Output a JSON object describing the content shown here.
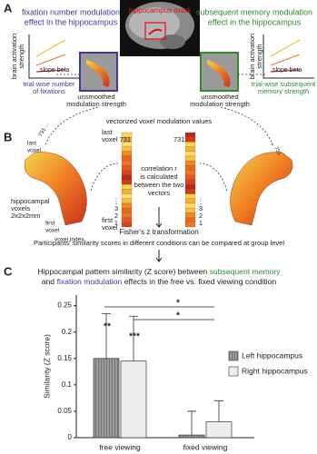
{
  "panel_a": {
    "label": "A",
    "left_title": [
      "fixation number modulation",
      "effect in the hippocampus"
    ],
    "mask_label": "hippocampus mask",
    "right_title": [
      "subsequent memory modulation",
      "effect in the hippocampus"
    ],
    "left_y_axis": [
      "brain activation",
      "strength"
    ],
    "left_x_axis": [
      "trial-wise number",
      "of fixations"
    ],
    "left_slope": "slope beta",
    "right_y_axis": [
      "brain activation",
      "strength"
    ],
    "right_x_axis": [
      "trial-wise subsequent",
      "memory strength"
    ],
    "right_slope": "slope beta",
    "left_caption": [
      "unsmoothed",
      "modulation strength"
    ],
    "right_caption": [
      "unsmoothed",
      "modulation strength"
    ]
  },
  "panel_b": {
    "label": "B",
    "heading": "vectorized voxel modulation values",
    "left_vector_top": [
      "last",
      "voxel 731"
    ],
    "right_vector_top": "731",
    "left_vector_bottom": [
      "first",
      "voxel"
    ],
    "left_indices": [
      "1",
      "2",
      "3",
      "⋮"
    ],
    "right_indices": [
      "1",
      "2",
      "3",
      "⋮"
    ],
    "correlation": [
      "correlation r",
      "is calculated",
      "between the two",
      "vectors"
    ],
    "brain_last": [
      "last",
      "voxel"
    ],
    "brain_tick": "731 ...",
    "right_brain_tick": "... 731",
    "brain_voxels": [
      "hippocampal",
      "voxels",
      "2x2x2mm"
    ],
    "brain_first": [
      "first",
      "voxel"
    ],
    "brain_index": "voxel index",
    "fisher": "Fisher's z transformation",
    "group": "Participants' similarity scores in different conditions can be compared at group level"
  },
  "panel_c": {
    "label": "C"
  },
  "chart_data": {
    "type": "bar",
    "title": [
      [
        {
          "text": "Hippocampal pattern similarity (Z score) between",
          "color": "#222222"
        },
        {
          "text": "subsequent memory",
          "color": "#2e8b2e"
        }
      ],
      [
        {
          "text": "and",
          "color": "#222222"
        },
        {
          "text": "fixation modulation",
          "color": "#3b3b9e"
        },
        {
          "text": "effects in the free vs. fixed viewing condition",
          "color": "#222222"
        }
      ]
    ],
    "y_label": "Similarity (Z score)",
    "categories": [
      "free viewing",
      "fixed viewing"
    ],
    "series": [
      {
        "name": "Left hippocampus",
        "color": "#6e6e6e",
        "pattern": "hatched",
        "values": [
          0.15,
          0.005
        ],
        "errors": [
          0.085,
          0.045
        ]
      },
      {
        "name": "Right hippocampus",
        "color": "#eeeeee",
        "values": [
          0.145,
          0.03
        ],
        "errors": [
          0.085,
          0.04
        ]
      }
    ],
    "ylim": [
      0,
      0.27
    ],
    "yticks": [
      0,
      0.05,
      0.1,
      0.15,
      0.2,
      0.25
    ],
    "annotations": [
      "**",
      "***",
      "*",
      "*"
    ],
    "legend": "right"
  }
}
